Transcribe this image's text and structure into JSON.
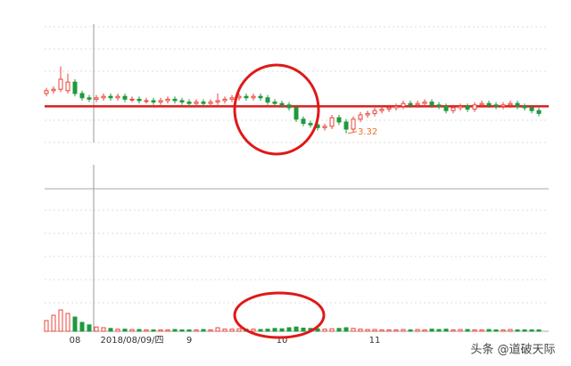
{
  "chart_data": {
    "type": "candlestick",
    "categories": [
      null,
      null,
      null,
      null,
      "08",
      null,
      null,
      null,
      null,
      null,
      null,
      null,
      "2018/08/09/四",
      null,
      null,
      null,
      null,
      null,
      null,
      null,
      "9",
      null,
      null,
      null,
      null,
      null,
      null,
      null,
      null,
      null,
      null,
      null,
      null,
      "10",
      null,
      null,
      null,
      null,
      null,
      null,
      null,
      null,
      null,
      null,
      null,
      null,
      "11",
      null,
      null,
      null,
      null,
      null,
      null,
      null,
      null,
      null,
      null,
      null,
      null,
      null,
      null,
      null,
      null,
      null,
      null,
      null,
      null,
      null,
      null,
      null
    ],
    "open": [
      3.6,
      3.62,
      3.63,
      3.62,
      3.68,
      3.6,
      3.57,
      3.56,
      3.57,
      3.58,
      3.57,
      3.58,
      3.56,
      3.56,
      3.55,
      3.55,
      3.54,
      3.55,
      3.56,
      3.55,
      3.54,
      3.53,
      3.54,
      3.53,
      3.54,
      3.55,
      3.56,
      3.57,
      3.58,
      3.57,
      3.58,
      3.57,
      3.54,
      3.53,
      3.52,
      3.5,
      3.42,
      3.39,
      3.38,
      3.36,
      3.37,
      3.43,
      3.4,
      3.35,
      3.42,
      3.45,
      3.46,
      3.48,
      3.49,
      3.5,
      3.51,
      3.53,
      3.52,
      3.53,
      3.54,
      3.52,
      3.51,
      3.48,
      3.5,
      3.51,
      3.49,
      3.52,
      3.53,
      3.52,
      3.51,
      3.52,
      3.53,
      3.51,
      3.5,
      3.48
    ],
    "high": [
      3.64,
      3.65,
      3.79,
      3.74,
      3.7,
      3.62,
      3.59,
      3.59,
      3.6,
      3.6,
      3.6,
      3.6,
      3.58,
      3.58,
      3.57,
      3.57,
      3.57,
      3.58,
      3.58,
      3.57,
      3.56,
      3.56,
      3.56,
      3.56,
      3.6,
      3.58,
      3.59,
      3.6,
      3.6,
      3.6,
      3.6,
      3.59,
      3.56,
      3.55,
      3.54,
      3.52,
      3.44,
      3.41,
      3.4,
      3.39,
      3.45,
      3.45,
      3.42,
      3.44,
      3.47,
      3.48,
      3.5,
      3.51,
      3.52,
      3.53,
      3.55,
      3.55,
      3.55,
      3.56,
      3.56,
      3.54,
      3.53,
      3.52,
      3.53,
      3.53,
      3.54,
      3.55,
      3.55,
      3.54,
      3.54,
      3.55,
      3.55,
      3.53,
      3.52,
      3.5
    ],
    "low": [
      3.58,
      3.6,
      3.61,
      3.6,
      3.58,
      3.55,
      3.54,
      3.54,
      3.55,
      3.55,
      3.55,
      3.54,
      3.54,
      3.53,
      3.53,
      3.52,
      3.52,
      3.53,
      3.53,
      3.52,
      3.51,
      3.51,
      3.51,
      3.51,
      3.52,
      3.53,
      3.54,
      3.55,
      3.55,
      3.55,
      3.55,
      3.52,
      3.51,
      3.5,
      3.48,
      3.4,
      3.37,
      3.36,
      3.34,
      3.34,
      3.35,
      3.38,
      3.32,
      3.33,
      3.4,
      3.43,
      3.44,
      3.46,
      3.47,
      3.48,
      3.49,
      3.5,
      3.5,
      3.51,
      3.5,
      3.49,
      3.46,
      3.46,
      3.48,
      3.47,
      3.47,
      3.5,
      3.5,
      3.49,
      3.49,
      3.5,
      3.49,
      3.48,
      3.46,
      3.44
    ],
    "close": [
      3.62,
      3.63,
      3.7,
      3.68,
      3.6,
      3.57,
      3.56,
      3.57,
      3.58,
      3.57,
      3.58,
      3.56,
      3.56,
      3.55,
      3.55,
      3.54,
      3.55,
      3.56,
      3.55,
      3.54,
      3.53,
      3.54,
      3.53,
      3.54,
      3.55,
      3.56,
      3.57,
      3.58,
      3.57,
      3.58,
      3.57,
      3.54,
      3.53,
      3.52,
      3.5,
      3.42,
      3.39,
      3.38,
      3.36,
      3.37,
      3.43,
      3.4,
      3.35,
      3.42,
      3.45,
      3.46,
      3.48,
      3.49,
      3.5,
      3.51,
      3.53,
      3.52,
      3.53,
      3.54,
      3.52,
      3.51,
      3.48,
      3.5,
      3.51,
      3.49,
      3.52,
      3.53,
      3.52,
      3.51,
      3.52,
      3.53,
      3.51,
      3.5,
      3.48,
      3.46
    ],
    "volume": [
      30,
      45,
      60,
      50,
      40,
      25,
      18,
      12,
      10,
      8,
      6,
      6,
      5,
      5,
      4,
      4,
      4,
      4,
      5,
      4,
      4,
      4,
      5,
      4,
      10,
      6,
      6,
      7,
      6,
      6,
      5,
      6,
      8,
      7,
      10,
      12,
      9,
      8,
      7,
      6,
      7,
      8,
      10,
      8,
      6,
      5,
      5,
      4,
      4,
      4,
      5,
      4,
      5,
      4,
      6,
      5,
      6,
      4,
      5,
      5,
      4,
      4,
      5,
      4,
      4,
      5,
      4,
      4,
      4,
      4
    ],
    "ylim": [
      3.1,
      4.1
    ],
    "volume_ylim": [
      0,
      400
    ],
    "up_color": "#e8443a",
    "down_color": "#1e9a3c",
    "reference_line": 3.51,
    "reference_color": "#d81e1e",
    "annotation": "3.32",
    "annotation_color": "#e8742a",
    "watermark": "头条 @道破天际"
  }
}
